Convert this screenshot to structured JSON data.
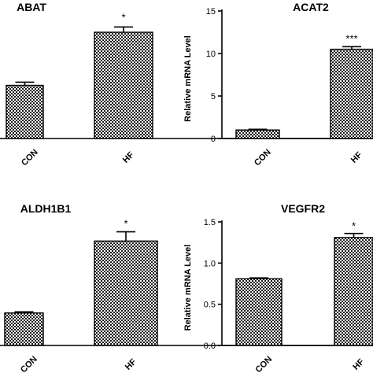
{
  "chart_data": [
    {
      "type": "bar",
      "title": "ABAT",
      "ylabel": "",
      "categories": [
        "CON",
        "HF"
      ],
      "values": [
        1.0,
        2.0
      ],
      "errors": [
        0.06,
        0.1
      ],
      "ylim": [
        0,
        2.4
      ],
      "yticks": [],
      "significance": [
        "",
        "*"
      ],
      "pattern": "checkerboard"
    },
    {
      "type": "bar",
      "title": "ACAT2",
      "ylabel": "Relative mRNA Level",
      "categories": [
        "CON",
        "HF"
      ],
      "values": [
        1.0,
        10.5
      ],
      "errors": [
        0.08,
        0.3
      ],
      "ylim": [
        0,
        15
      ],
      "yticks": [
        "0",
        "5",
        "10",
        "15"
      ],
      "significance": [
        "",
        "***"
      ],
      "pattern": "checkerboard"
    },
    {
      "type": "bar",
      "title": "ALDH1B1",
      "ylabel": "",
      "categories": [
        "CON",
        "HF"
      ],
      "values": [
        0.28,
        0.9
      ],
      "errors": [
        0.01,
        0.08
      ],
      "ylim": [
        0,
        1.35
      ],
      "yticks": [],
      "significance": [
        "",
        "*"
      ],
      "pattern": "checkerboard"
    },
    {
      "type": "bar",
      "title": "VEGFR2",
      "ylabel": "Relative mRNA Level",
      "categories": [
        "CON",
        "HF"
      ],
      "values": [
        0.81,
        1.31
      ],
      "errors": [
        0.01,
        0.05
      ],
      "ylim": [
        0,
        1.5
      ],
      "yticks": [
        "0.0",
        "0.5",
        "1.0",
        "1.5"
      ],
      "significance": [
        "",
        "*"
      ],
      "pattern": "checkerboard"
    }
  ]
}
